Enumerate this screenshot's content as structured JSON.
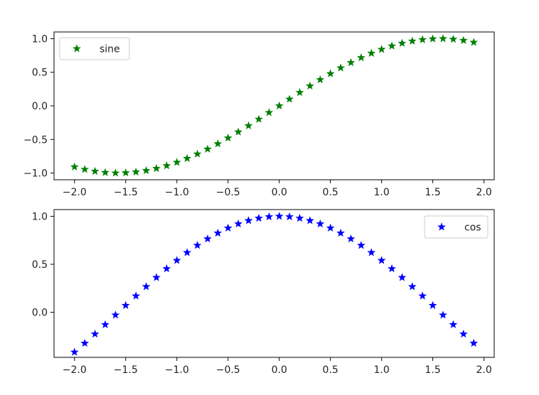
{
  "colors": {
    "sine": "#008000",
    "cos": "#0000ff",
    "axis": "#000000",
    "text": "#222222"
  },
  "marker": "star",
  "chart_data": [
    {
      "type": "scatter",
      "legend": {
        "label": "sine",
        "placement": "upper-left"
      },
      "xlim": [
        -2.2,
        2.1
      ],
      "ylim": [
        -1.1,
        1.1
      ],
      "grid": false,
      "xticks": [
        {
          "value": -2.0,
          "label": "−2.0"
        },
        {
          "value": -1.5,
          "label": "−1.5"
        },
        {
          "value": -1.0,
          "label": "−1.0"
        },
        {
          "value": -0.5,
          "label": "−0.5"
        },
        {
          "value": 0.0,
          "label": "0.0"
        },
        {
          "value": 0.5,
          "label": "0.5"
        },
        {
          "value": 1.0,
          "label": "1.0"
        },
        {
          "value": 1.5,
          "label": "1.5"
        },
        {
          "value": 2.0,
          "label": "2.0"
        }
      ],
      "yticks": [
        {
          "value": 1.0,
          "label": "1.0"
        },
        {
          "value": 0.5,
          "label": "0.5"
        },
        {
          "value": 0.0,
          "label": "0.0"
        },
        {
          "value": -0.5,
          "label": "−0.5"
        },
        {
          "value": -1.0,
          "label": "−1.0"
        }
      ],
      "series": [
        {
          "name": "sine",
          "x": [
            -2.0,
            -1.9,
            -1.8,
            -1.7,
            -1.6,
            -1.5,
            -1.4,
            -1.3,
            -1.2,
            -1.1,
            -1.0,
            -0.9,
            -0.8,
            -0.7,
            -0.6,
            -0.5,
            -0.4,
            -0.3,
            -0.2,
            -0.1,
            0.0,
            0.1,
            0.2,
            0.3,
            0.4,
            0.5,
            0.6,
            0.7,
            0.8,
            0.9,
            1.0,
            1.1,
            1.2,
            1.3,
            1.4,
            1.5,
            1.6,
            1.7,
            1.8,
            1.9
          ],
          "y": [
            -0.909,
            -0.946,
            -0.974,
            -0.992,
            -1.0,
            -0.997,
            -0.985,
            -0.964,
            -0.932,
            -0.891,
            -0.841,
            -0.783,
            -0.717,
            -0.644,
            -0.565,
            -0.479,
            -0.389,
            -0.296,
            -0.199,
            -0.1,
            0.0,
            0.1,
            0.199,
            0.296,
            0.389,
            0.479,
            0.565,
            0.644,
            0.717,
            0.783,
            0.841,
            0.891,
            0.932,
            0.964,
            0.985,
            0.997,
            1.0,
            0.992,
            0.974,
            0.946
          ]
        }
      ]
    },
    {
      "type": "scatter",
      "legend": {
        "label": "cos",
        "placement": "upper-right"
      },
      "xlim": [
        -2.2,
        2.1
      ],
      "ylim": [
        -0.47,
        1.07
      ],
      "grid": false,
      "xticks": [
        {
          "value": -2.0,
          "label": "−2.0"
        },
        {
          "value": -1.5,
          "label": "−1.5"
        },
        {
          "value": -1.0,
          "label": "−1.0"
        },
        {
          "value": -0.5,
          "label": "−0.5"
        },
        {
          "value": 0.0,
          "label": "0.0"
        },
        {
          "value": 0.5,
          "label": "0.5"
        },
        {
          "value": 1.0,
          "label": "1.0"
        },
        {
          "value": 1.5,
          "label": "1.5"
        },
        {
          "value": 2.0,
          "label": "2.0"
        }
      ],
      "yticks": [
        {
          "value": 1.0,
          "label": "1.0"
        },
        {
          "value": 0.5,
          "label": "0.5"
        },
        {
          "value": 0.0,
          "label": "0.0"
        }
      ],
      "series": [
        {
          "name": "cos",
          "x": [
            -2.0,
            -1.9,
            -1.8,
            -1.7,
            -1.6,
            -1.5,
            -1.4,
            -1.3,
            -1.2,
            -1.1,
            -1.0,
            -0.9,
            -0.8,
            -0.7,
            -0.6,
            -0.5,
            -0.4,
            -0.3,
            -0.2,
            -0.1,
            0.0,
            0.1,
            0.2,
            0.3,
            0.4,
            0.5,
            0.6,
            0.7,
            0.8,
            0.9,
            1.0,
            1.1,
            1.2,
            1.3,
            1.4,
            1.5,
            1.6,
            1.7,
            1.8,
            1.9
          ],
          "y": [
            -0.416,
            -0.323,
            -0.227,
            -0.129,
            -0.029,
            0.071,
            0.17,
            0.267,
            0.362,
            0.454,
            0.54,
            0.622,
            0.697,
            0.765,
            0.825,
            0.878,
            0.921,
            0.955,
            0.98,
            0.995,
            1.0,
            0.995,
            0.98,
            0.955,
            0.921,
            0.878,
            0.825,
            0.765,
            0.697,
            0.622,
            0.54,
            0.454,
            0.362,
            0.267,
            0.17,
            0.071,
            -0.029,
            -0.129,
            -0.227,
            -0.323
          ]
        }
      ]
    }
  ]
}
